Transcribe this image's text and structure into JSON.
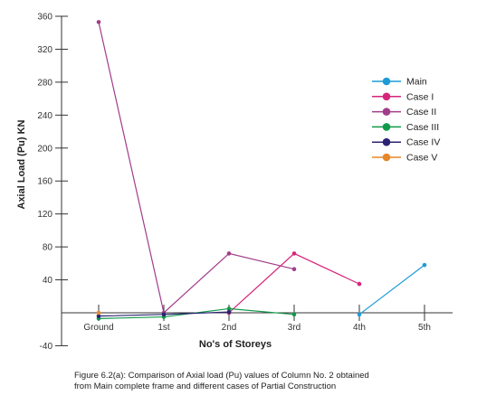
{
  "chart_data": {
    "type": "line",
    "title": "",
    "xlabel": "No's of Storeys",
    "ylabel": "Axial Load (Pu) KN",
    "categories": [
      "Ground",
      "1st",
      "2nd",
      "3rd",
      "4th",
      "5th"
    ],
    "ylim": [
      -40,
      360
    ],
    "yticks": [
      -40,
      40,
      80,
      120,
      160,
      200,
      240,
      280,
      320,
      360
    ],
    "grid": false,
    "legend_position": "right",
    "series": [
      {
        "name": "Main",
        "color": "#1e9bd7",
        "values": [
          null,
          null,
          null,
          null,
          -2,
          58
        ]
      },
      {
        "name": "Case I",
        "color": "#d6267a",
        "values": [
          null,
          null,
          0,
          72,
          35,
          null
        ]
      },
      {
        "name": "Case II",
        "color": "#a13d8a",
        "values": [
          353,
          0,
          72,
          53,
          null,
          null
        ]
      },
      {
        "name": "Case III",
        "color": "#119a4a",
        "values": [
          -7,
          -5,
          5,
          -2,
          null,
          null
        ]
      },
      {
        "name": "Case IV",
        "color": "#2b2372",
        "values": [
          -4,
          -2,
          1,
          null,
          null,
          null
        ]
      },
      {
        "name": "Case V",
        "color": "#e8862a",
        "values": [
          0,
          null,
          null,
          null,
          null,
          null
        ]
      }
    ]
  },
  "caption": {
    "line1": "Figure 6.2(a): Comparison of Axial load (Pu) values of Column No. 2 obtained",
    "line2": "from Main complete frame and different cases of Partial Construction"
  }
}
